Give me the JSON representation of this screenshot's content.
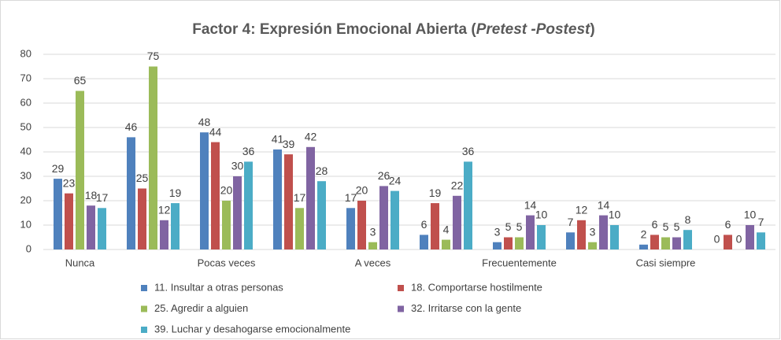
{
  "chart_data": {
    "type": "bar",
    "title": [
      "Factor 4: Expresión Emocional Abierta (",
      "Pretest -Postest",
      ")"
    ],
    "categories": [
      "Nunca",
      null,
      "Pocas veces",
      null,
      "A veces",
      null,
      "Frecuentemente",
      null,
      "Casi siempre",
      null
    ],
    "series": [
      {
        "name": "11. Insultar a otras personas",
        "color": "#4f81bd",
        "values": [
          29,
          46,
          48,
          41,
          17,
          6,
          3,
          7,
          2,
          0
        ]
      },
      {
        "name": "18. Comportarse hostilmente",
        "color": "#c0504d",
        "values": [
          23,
          25,
          44,
          39,
          20,
          19,
          5,
          12,
          6,
          6
        ]
      },
      {
        "name": "25. Agredir a alguien",
        "color": "#9bbb59",
        "values": [
          65,
          75,
          20,
          17,
          3,
          4,
          5,
          3,
          5,
          0
        ]
      },
      {
        "name": "32. Irritarse con la gente",
        "color": "#8064a2",
        "values": [
          18,
          12,
          30,
          42,
          26,
          22,
          14,
          14,
          5,
          10
        ]
      },
      {
        "name": "39. Luchar y desahogarse emocionalmente",
        "color": "#4bacc6",
        "values": [
          17,
          19,
          36,
          28,
          24,
          36,
          10,
          10,
          8,
          7
        ]
      }
    ],
    "ylim": [
      0,
      80
    ],
    "yticks": [
      0,
      10,
      20,
      30,
      40,
      50,
      60,
      70,
      80
    ],
    "grid": true
  }
}
